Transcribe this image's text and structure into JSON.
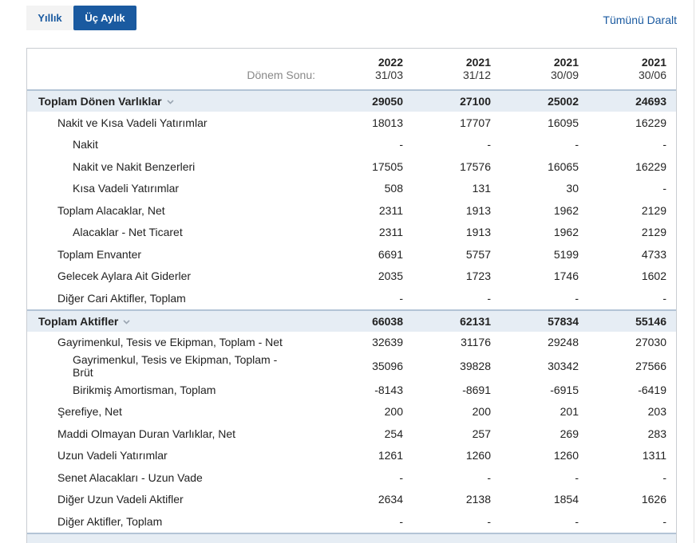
{
  "tabs": [
    "Yıllık",
    "Üç Aylık"
  ],
  "active_tab": 1,
  "collapse_link": "Tümünü Daralt",
  "header": {
    "period_label": "Dönem Sonu:",
    "columns": [
      {
        "year": "2022",
        "date": "31/03"
      },
      {
        "year": "2021",
        "date": "31/12"
      },
      {
        "year": "2021",
        "date": "30/09"
      },
      {
        "year": "2021",
        "date": "30/06"
      }
    ]
  },
  "rows": [
    {
      "label": "Toplam Dönen Varlıklar",
      "level": 0,
      "values": [
        29050,
        27100,
        25002,
        24693
      ]
    },
    {
      "label": "Nakit ve Kısa Vadeli Yatırımlar",
      "level": 1,
      "values": [
        18013,
        17707,
        16095,
        16229
      ]
    },
    {
      "label": "Nakit",
      "level": 2,
      "values": [
        "-",
        "-",
        "-",
        "-"
      ]
    },
    {
      "label": "Nakit ve Nakit Benzerleri",
      "level": 2,
      "values": [
        17505,
        17576,
        16065,
        16229
      ]
    },
    {
      "label": "Kısa Vadeli Yatırımlar",
      "level": 2,
      "values": [
        508,
        131,
        30,
        "-"
      ]
    },
    {
      "label": "Toplam Alacaklar, Net",
      "level": 1,
      "values": [
        2311,
        1913,
        1962,
        2129
      ]
    },
    {
      "label": "Alacaklar - Net Ticaret",
      "level": 2,
      "values": [
        2311,
        1913,
        1962,
        2129
      ]
    },
    {
      "label": "Toplam Envanter",
      "level": 1,
      "values": [
        6691,
        5757,
        5199,
        4733
      ]
    },
    {
      "label": "Gelecek Aylara Ait Giderler",
      "level": 1,
      "values": [
        2035,
        1723,
        1746,
        1602
      ]
    },
    {
      "label": "Diğer Cari Aktifler, Toplam",
      "level": 1,
      "values": [
        "-",
        "-",
        "-",
        "-"
      ]
    },
    {
      "label": "Toplam Aktifler",
      "level": 0,
      "values": [
        66038,
        62131,
        57834,
        55146
      ]
    },
    {
      "label": "Gayrimenkul, Tesis ve Ekipman, Toplam - Net",
      "level": 1,
      "values": [
        32639,
        31176,
        29248,
        27030
      ]
    },
    {
      "label": "Gayrimenkul, Tesis ve Ekipman, Toplam - Brüt",
      "level": 2,
      "values": [
        35096,
        39828,
        30342,
        27566
      ]
    },
    {
      "label": "Birikmiş Amortisman, Toplam",
      "level": 2,
      "values": [
        -8143,
        -8691,
        -6915,
        -6419
      ]
    },
    {
      "label": "Şerefiye, Net",
      "level": 1,
      "values": [
        200,
        200,
        201,
        203
      ]
    },
    {
      "label": "Maddi Olmayan Duran Varlıklar, Net",
      "level": 1,
      "values": [
        254,
        257,
        269,
        283
      ]
    },
    {
      "label": "Uzun Vadeli Yatırımlar",
      "level": 1,
      "values": [
        1261,
        1260,
        1260,
        1311
      ]
    },
    {
      "label": "Senet Alacakları - Uzun Vade",
      "level": 1,
      "values": [
        "-",
        "-",
        "-",
        "-"
      ]
    },
    {
      "label": "Diğer Uzun Vadeli Aktifler",
      "level": 1,
      "values": [
        2634,
        2138,
        1854,
        1626
      ]
    },
    {
      "label": "Diğer Aktifler, Toplam",
      "level": 1,
      "values": [
        "-",
        "-",
        "-",
        "-"
      ]
    }
  ]
}
